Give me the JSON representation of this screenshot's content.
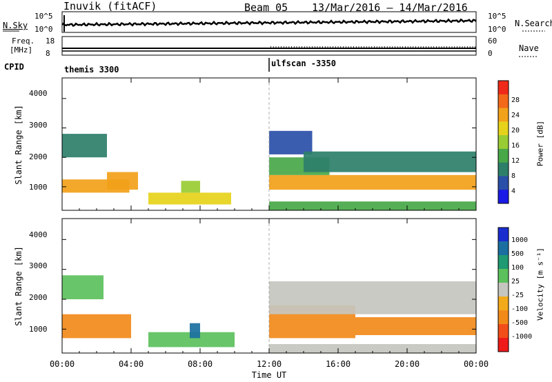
{
  "header": {
    "station": "Inuvik (fitACF)",
    "beam": "Beam 05",
    "dates": "13/Mar/2016 – 14/Mar/2016"
  },
  "status_panels": {
    "nsky_label": "N.Sky",
    "nsearch_label": "N.Search",
    "nsky_ticks": [
      "10^5",
      "10^0"
    ],
    "nsearch_ticks": [
      "10^5",
      "10^0"
    ],
    "freq_label_1": "Freq.",
    "freq_label_2": "[MHz]",
    "freq_ticks": [
      "18",
      "8"
    ],
    "nave_label": "Nave",
    "nave_ticks": [
      "60",
      "0"
    ],
    "cpid_label": "CPID",
    "cpid_segments": [
      {
        "name": "themis 3300",
        "start_hour": 0
      },
      {
        "name": "ulfscan -3350",
        "start_hour": 12
      }
    ]
  },
  "chart_data": [
    {
      "type": "heatmap",
      "title": "",
      "parameter": "Power",
      "ylabel": "Slant Range [km]",
      "yticks": [
        "1000",
        "2000",
        "3000",
        "4000"
      ],
      "ylim": [
        200,
        4700
      ],
      "xlim": [
        0,
        24
      ],
      "colorbar": {
        "label": "Power [dB]",
        "ticks": [
          "4",
          "8",
          "12",
          "16",
          "20",
          "24",
          "28"
        ],
        "colors": [
          "#1a1ae6",
          "#2a4fa8",
          "#2d7f6a",
          "#48a848",
          "#99cc33",
          "#e6d21a",
          "#f2a11a",
          "#f2691a",
          "#ef2a1a"
        ]
      },
      "regions": [
        {
          "t0": 0.0,
          "t1": 3.9,
          "r0": 800,
          "r1": 1250,
          "value": 27
        },
        {
          "t0": 0.0,
          "t1": 2.6,
          "r0": 2000,
          "r1": 2800,
          "value": 8
        },
        {
          "t0": 2.6,
          "t1": 4.4,
          "r0": 900,
          "r1": 1500,
          "value": 24
        },
        {
          "t0": 5.0,
          "t1": 9.8,
          "r0": 400,
          "r1": 800,
          "value": 20
        },
        {
          "t0": 6.9,
          "t1": 8.0,
          "r0": 800,
          "r1": 1200,
          "value": 16
        },
        {
          "t0": 12.0,
          "t1": 24.0,
          "r0": 900,
          "r1": 1400,
          "value": 26
        },
        {
          "t0": 12.0,
          "t1": 15.5,
          "r0": 1400,
          "r1": 2000,
          "value": 12
        },
        {
          "t0": 12.0,
          "t1": 14.5,
          "r0": 2100,
          "r1": 2900,
          "value": 6
        },
        {
          "t0": 14.0,
          "t1": 24.0,
          "r0": 1500,
          "r1": 2200,
          "value": 8
        },
        {
          "t0": 12.0,
          "t1": 24.0,
          "r0": 200,
          "r1": 500,
          "value": 14
        }
      ]
    },
    {
      "type": "heatmap",
      "title": "",
      "parameter": "Velocity",
      "ylabel": "Slant Range [km]",
      "yticks": [
        "1000",
        "2000",
        "3000",
        "4000"
      ],
      "ylim": [
        200,
        4700
      ],
      "xlim": [
        0,
        24
      ],
      "xticks": [
        "00:00",
        "04:00",
        "08:00",
        "12:00",
        "16:00",
        "20:00",
        "00:00"
      ],
      "xlabel": "Time UT",
      "colorbar": {
        "label": "Velocity [m s⁻¹]",
        "ticks": [
          "1000",
          "500",
          "100",
          "25",
          "-25",
          "-100",
          "-500",
          "-1000"
        ],
        "colors": [
          "#1a2ed0",
          "#1a6fa0",
          "#1f9a72",
          "#5cc05c",
          "#c6c6c0",
          "#f2aa1a",
          "#f28a1a",
          "#f24e1a",
          "#ef1a1a"
        ]
      },
      "regions": [
        {
          "t0": 0.0,
          "t1": 4.0,
          "r0": 700,
          "r1": 1500,
          "value": -150
        },
        {
          "t0": 0.0,
          "t1": 2.4,
          "r0": 2000,
          "r1": 2800,
          "value": 50
        },
        {
          "t0": 5.0,
          "t1": 10.0,
          "r0": 400,
          "r1": 900,
          "value": 60
        },
        {
          "t0": 7.4,
          "t1": 8.0,
          "r0": 700,
          "r1": 1200,
          "value": 600
        },
        {
          "t0": 12.0,
          "t1": 17.0,
          "r0": 700,
          "r1": 1800,
          "value": -200
        },
        {
          "t0": 12.0,
          "t1": 24.0,
          "r0": 1500,
          "r1": 2600,
          "value": 0
        },
        {
          "t0": 17.0,
          "t1": 24.0,
          "r0": 800,
          "r1": 1400,
          "value": -150
        },
        {
          "t0": 12.0,
          "t1": 24.0,
          "r0": 200,
          "r1": 500,
          "value": 0
        }
      ]
    }
  ]
}
